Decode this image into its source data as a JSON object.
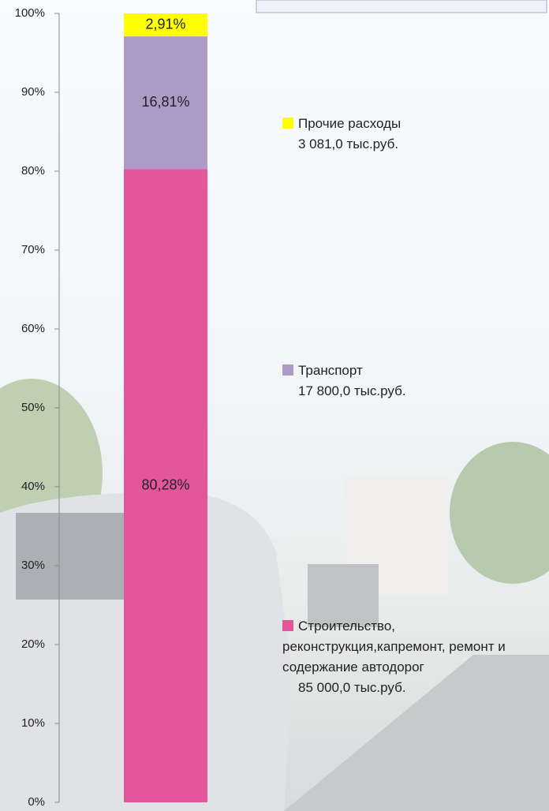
{
  "chart_data": {
    "type": "stacked_bar",
    "categories": [
      null
    ],
    "series": [
      {
        "name": "Строительство, реконструкция,капремонт, ремонт и содержание автодорог",
        "amount_label": "85 000,0 тыс.руб.",
        "color": "#e4569a",
        "values": [
          80.28
        ],
        "value_labels": [
          "80,28%"
        ]
      },
      {
        "name": "Транспорт",
        "amount_label": "17 800,0 тыс.руб.",
        "color": "#ae9ac6",
        "values": [
          16.81
        ],
        "value_labels": [
          "16,81%"
        ]
      },
      {
        "name": "Прочие расходы",
        "amount_label": "3 081,0 тыс.руб.",
        "color": "#ffff00",
        "values": [
          2.91
        ],
        "value_labels": [
          "2,91%"
        ]
      }
    ],
    "ylim": [
      0,
      100
    ],
    "yticks": [
      {
        "value": 0,
        "label": "0%"
      },
      {
        "value": 10,
        "label": "10%"
      },
      {
        "value": 20,
        "label": "20%"
      },
      {
        "value": 30,
        "label": "30%"
      },
      {
        "value": 40,
        "label": "40%"
      },
      {
        "value": 50,
        "label": "50%"
      },
      {
        "value": 60,
        "label": "60%"
      },
      {
        "value": 70,
        "label": "70%"
      },
      {
        "value": 80,
        "label": "80%"
      },
      {
        "value": 90,
        "label": "90%"
      },
      {
        "value": 100,
        "label": "100%"
      }
    ]
  }
}
